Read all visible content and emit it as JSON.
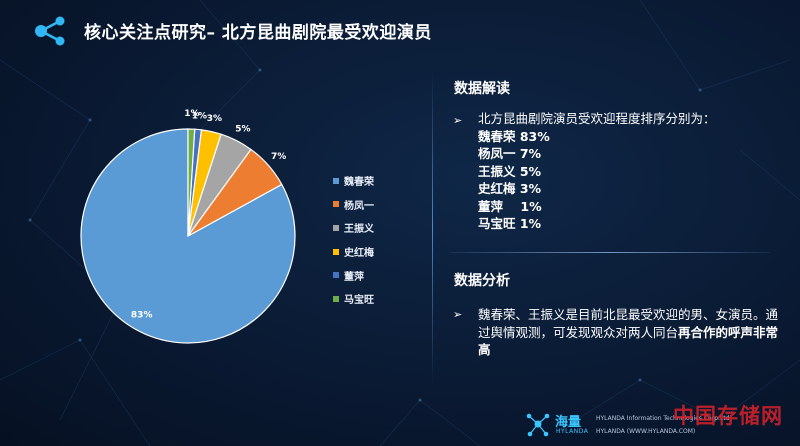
{
  "header": {
    "title": "核心关注点研究– 北方昆曲剧院最受欢迎演员"
  },
  "colors": {
    "background": "#0a1a33",
    "accent": "#3ac6ff",
    "watermark": "#d9222a"
  },
  "chart_data": {
    "type": "pie",
    "title": "",
    "categories": [
      "魏春荣",
      "杨凤一",
      "王振义",
      "史红梅",
      "董萍",
      "马宝旺"
    ],
    "values": [
      83,
      7,
      5,
      3,
      1,
      1
    ],
    "labels": [
      "83%",
      "7%",
      "5%",
      "3%",
      "1%",
      "1%"
    ],
    "colors": [
      "#5b9bd5",
      "#ed7d31",
      "#a5a5a5",
      "#ffc000",
      "#4472c4",
      "#70ad47"
    ],
    "legend_position": "right"
  },
  "legend": {
    "items": [
      "魏春荣",
      "杨凤一",
      "王振义",
      "史红梅",
      "董萍",
      "马宝旺"
    ]
  },
  "interpretation": {
    "title": "数据解读",
    "bullet": "➢",
    "intro": "北方昆曲剧院演员受欢迎程度排序分别为：",
    "ranks": [
      "魏春荣 83%",
      "杨凤一 7%",
      "王振义 5%",
      "史红梅 3%",
      "董萍    1%",
      "马宝旺 1%"
    ]
  },
  "analysis": {
    "title": "数据分析",
    "bullet": "➢",
    "text_normal": "魏春荣、王振义是目前北昆最受欢迎的男、女演员。通过舆情观测，可发现观众对两人同台",
    "text_bold": "再合作的呼声非常高"
  },
  "footer": {
    "logo_cn": "海量",
    "logo_en": "HYLANDA",
    "company": "HYLANDA Information Technologies Corp.Ltd",
    "website": "HYLANDA (WWW.HYLANDA.COM)",
    "watermark": "中国存储网"
  }
}
